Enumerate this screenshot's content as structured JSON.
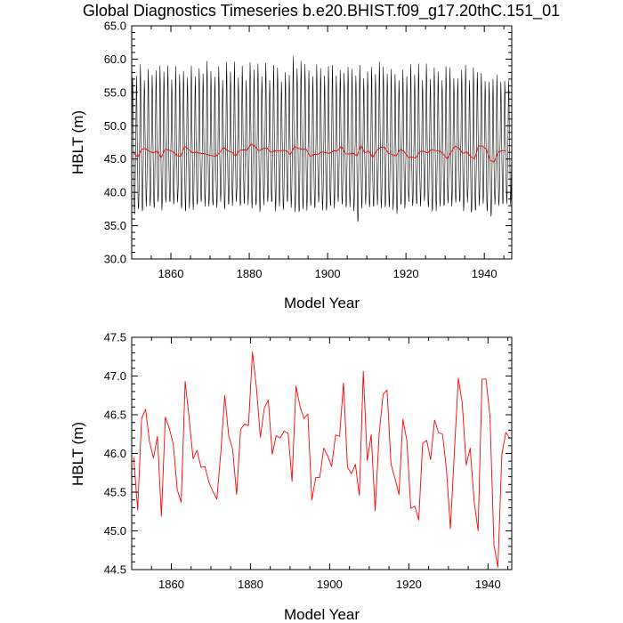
{
  "title": "Global Diagnostics Timeseries b.e20.BHIST.f09_g17.20thC.151_01",
  "chart_data": [
    {
      "type": "line",
      "xlabel": "Model Year",
      "ylabel": "HBLT (m)",
      "xlim": [
        1850,
        1947
      ],
      "ylim": [
        30.0,
        65.0
      ],
      "xticks": [
        "1860",
        "1880",
        "1900",
        "1920",
        "1940"
      ],
      "yticks": [
        "30.0",
        "35.0",
        "40.0",
        "45.0",
        "50.0",
        "55.0",
        "60.0",
        "65.0"
      ],
      "series": [
        {
          "color": "#000000",
          "kind": "monthly",
          "annual_max": [
            57.2,
            57.5,
            59.2,
            56.8,
            58.5,
            57.6,
            58.3,
            59.0,
            58.1,
            59.0,
            56.9,
            58.9,
            57.7,
            58.2,
            57.2,
            59.0,
            57.4,
            58.6,
            57.8,
            59.7,
            58.2,
            57.3,
            58.9,
            56.8,
            59.6,
            58.1,
            59.6,
            57.2,
            59.0,
            56.8,
            59.5,
            58.4,
            59.3,
            57.4,
            59.4,
            56.8,
            59.1,
            58.7,
            56.6,
            58.0,
            57.6,
            60.4,
            58.6,
            59.7,
            59.2,
            58.3,
            57.4,
            59.2,
            58.6,
            57.5,
            58.9,
            59.1,
            57.5,
            58.3,
            57.9,
            58.8,
            58.5,
            57.5,
            59.1,
            57.1,
            58.1,
            58.8,
            57.7,
            59.6,
            58.8,
            57.8,
            58.5,
            57.7,
            56.8,
            58.4,
            57.4,
            59.2,
            57.6,
            59.3,
            56.8,
            59.3,
            57.0,
            58.7,
            58.1,
            56.8,
            58.9,
            58.7,
            57.1,
            57.1,
            58.3,
            59.1,
            56.8,
            58.7,
            58.0,
            57.9,
            56.7,
            56.6,
            57.0,
            57.6,
            56.6,
            56.7,
            56.8
          ],
          "annual_min": [
            36.7,
            37.5,
            37.2,
            37.9,
            38.0,
            37.7,
            38.6,
            37.3,
            38.5,
            38.6,
            38.2,
            38.5,
            37.6,
            37.2,
            37.6,
            37.4,
            38.2,
            38.6,
            37.9,
            37.9,
            38.1,
            37.7,
            38.6,
            37.5,
            38.2,
            38.0,
            38.6,
            38.0,
            38.3,
            38.1,
            37.6,
            38.1,
            37.1,
            38.1,
            38.6,
            38.6,
            37.2,
            37.9,
            37.4,
            38.6,
            37.7,
            37.1,
            37.1,
            37.5,
            37.3,
            38.0,
            37.7,
            38.5,
            37.3,
            37.3,
            38.0,
            37.6,
            38.6,
            38.2,
            37.8,
            37.8,
            37.2,
            35.6,
            37.6,
            38.2,
            37.8,
            37.9,
            38.1,
            37.6,
            37.8,
            37.8,
            37.4,
            36.8,
            38.2,
            37.6,
            38.6,
            38.0,
            38.3,
            37.9,
            38.7,
            37.8,
            37.2,
            37.2,
            37.9,
            38.0,
            38.4,
            37.9,
            38.5,
            38.6,
            37.2,
            38.5,
            37.0,
            37.3,
            38.0,
            38.3,
            37.2,
            36.4,
            38.2,
            38.0,
            38.3,
            38.3,
            38.2
          ]
        },
        {
          "color": "#ff0000",
          "kind": "annual",
          "ref": 1
        }
      ]
    },
    {
      "type": "line",
      "xlabel": "Model Year",
      "ylabel": "HBLT (m)",
      "xlim": [
        1850,
        1946
      ],
      "ylim": [
        44.5,
        47.5
      ],
      "xticks": [
        "1860",
        "1880",
        "1900",
        "1920",
        "1940"
      ],
      "yticks": [
        "44.5",
        "45.0",
        "45.5",
        "46.0",
        "46.5",
        "47.0",
        "47.5"
      ],
      "series": [
        {
          "color": "#ff0000",
          "x_start": 1850.5,
          "x_step": 1,
          "values": [
            45.95,
            45.27,
            46.45,
            46.57,
            46.15,
            45.94,
            46.22,
            45.19,
            46.47,
            46.32,
            46.12,
            45.53,
            45.37,
            46.93,
            46.46,
            45.93,
            46.04,
            45.82,
            45.83,
            45.63,
            45.51,
            45.41,
            46.01,
            46.75,
            46.23,
            46.05,
            45.47,
            46.31,
            46.38,
            46.36,
            47.31,
            46.85,
            46.21,
            46.59,
            46.69,
            45.99,
            46.23,
            46.2,
            46.29,
            46.26,
            45.64,
            46.87,
            46.61,
            46.45,
            46.51,
            45.4,
            45.69,
            45.69,
            46.07,
            45.97,
            45.83,
            46.24,
            46.22,
            46.91,
            45.82,
            45.74,
            45.86,
            45.46,
            47.06,
            45.91,
            46.24,
            45.26,
            46.25,
            46.76,
            46.82,
            45.86,
            45.68,
            45.47,
            46.44,
            46.17,
            45.29,
            45.32,
            45.14,
            46.13,
            46.17,
            45.92,
            46.43,
            46.27,
            46.25,
            45.8,
            45.03,
            46.01,
            46.97,
            46.65,
            45.85,
            46.07,
            45.38,
            45.0,
            46.96,
            46.96,
            46.48,
            44.82,
            44.53,
            45.99,
            46.27,
            46.2
          ]
        }
      ]
    }
  ]
}
